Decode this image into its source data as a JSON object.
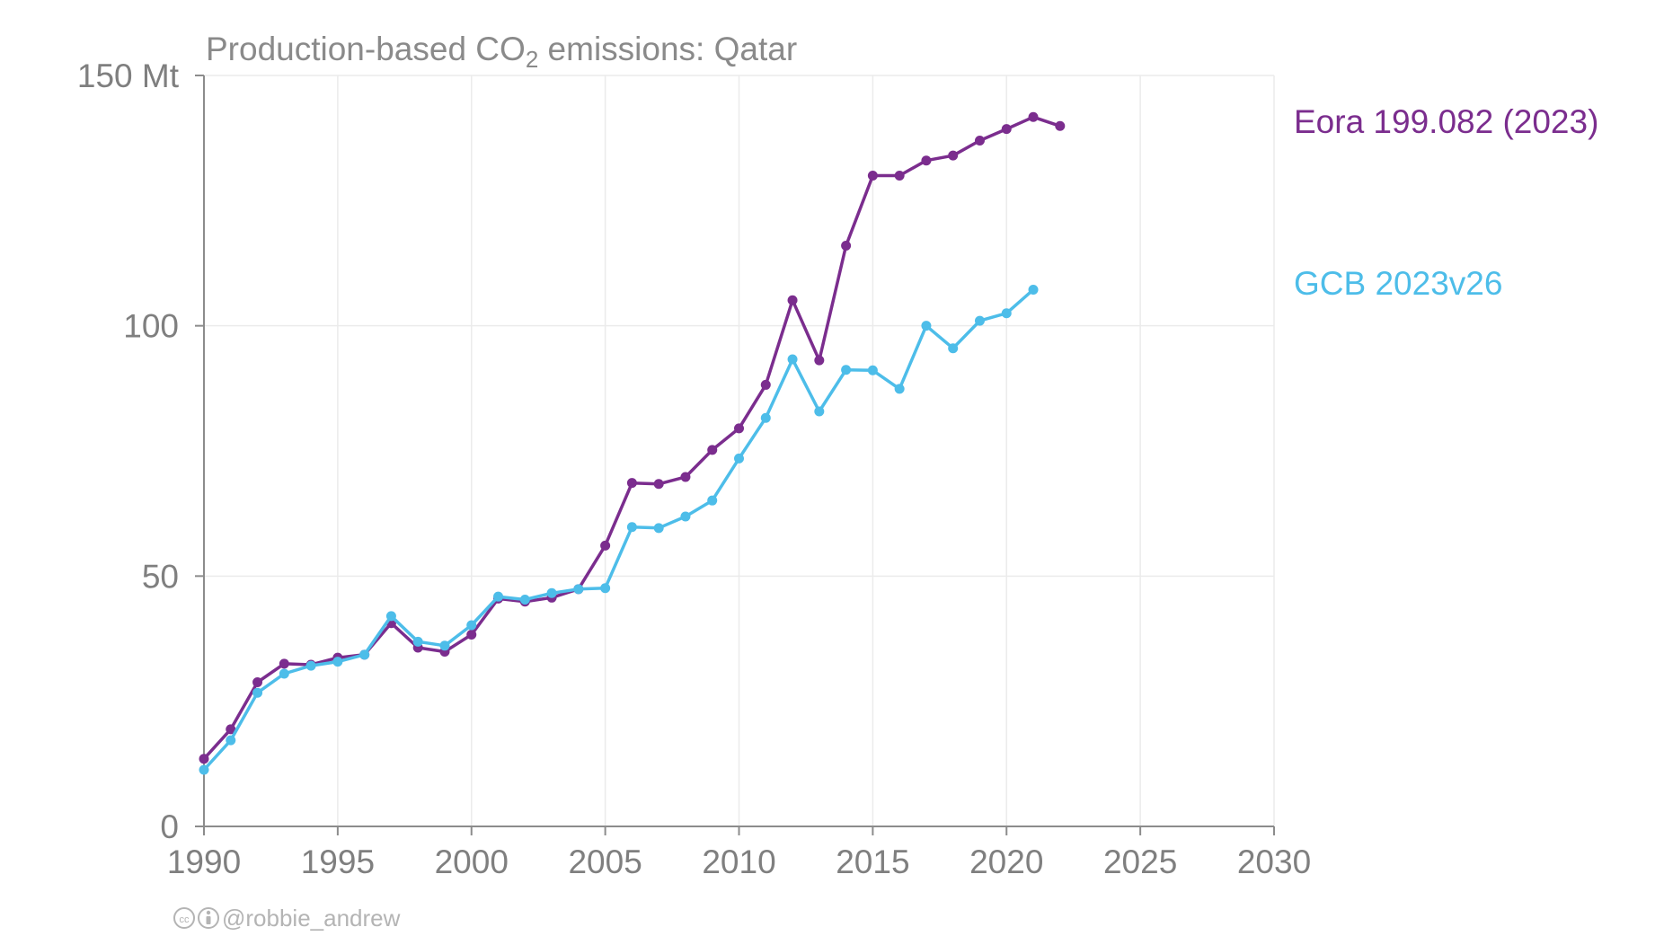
{
  "chart_data": {
    "type": "line",
    "title": {
      "prefix": "Production-based CO",
      "subscript": "2",
      "suffix": " emissions: Qatar"
    },
    "xlim": [
      1990,
      2030
    ],
    "ylim": [
      0,
      150
    ],
    "x_ticks": [
      1990,
      1995,
      2000,
      2005,
      2010,
      2015,
      2020,
      2025,
      2030
    ],
    "y_ticks": [
      {
        "value": 0,
        "label": "0"
      },
      {
        "value": 50,
        "label": "50"
      },
      {
        "value": 100,
        "label": "100"
      },
      {
        "value": 150,
        "label": "150 Mt"
      }
    ],
    "grid": true,
    "legend_placement": "right",
    "series": [
      {
        "name": "Eora 199.082 (2023)",
        "color": "#7b2d8e",
        "x": [
          1990,
          1991,
          1992,
          1993,
          1994,
          1995,
          1996,
          1997,
          1998,
          1999,
          2000,
          2001,
          2002,
          2003,
          2004,
          2005,
          2006,
          2007,
          2008,
          2009,
          2010,
          2011,
          2012,
          2013,
          2014,
          2015,
          2016,
          2017,
          2018,
          2019,
          2020,
          2021,
          2022
        ],
        "values": [
          13.5,
          19.4,
          28.8,
          32.5,
          32.3,
          33.7,
          34.3,
          40.6,
          35.7,
          34.9,
          38.3,
          45.5,
          44.9,
          45.7,
          47.4,
          56.1,
          68.6,
          68.4,
          69.8,
          75.2,
          79.5,
          88.2,
          105.1,
          93.1,
          116.0,
          130.0,
          130.0,
          133.0,
          134.0,
          137.0,
          139.3,
          141.7,
          139.9
        ]
      },
      {
        "name": "GCB 2023v26",
        "color": "#4dbde9",
        "x": [
          1990,
          1991,
          1992,
          1993,
          1994,
          1995,
          1996,
          1997,
          1998,
          1999,
          2000,
          2001,
          2002,
          2003,
          2004,
          2005,
          2006,
          2007,
          2008,
          2009,
          2010,
          2011,
          2012,
          2013,
          2014,
          2015,
          2016,
          2017,
          2018,
          2019,
          2020,
          2021
        ],
        "values": [
          11.3,
          17.2,
          26.7,
          30.5,
          32.1,
          32.9,
          34.3,
          42.0,
          36.9,
          36.1,
          40.2,
          45.9,
          45.3,
          46.6,
          47.4,
          47.6,
          59.8,
          59.6,
          61.9,
          65.1,
          73.5,
          81.6,
          93.3,
          82.9,
          91.2,
          91.1,
          87.4,
          100.0,
          95.5,
          101.0,
          102.5,
          107.2
        ]
      }
    ]
  },
  "credit": {
    "icons": [
      "cc-icon",
      "attribution-icon"
    ],
    "handle": "@robbie_andrew"
  }
}
